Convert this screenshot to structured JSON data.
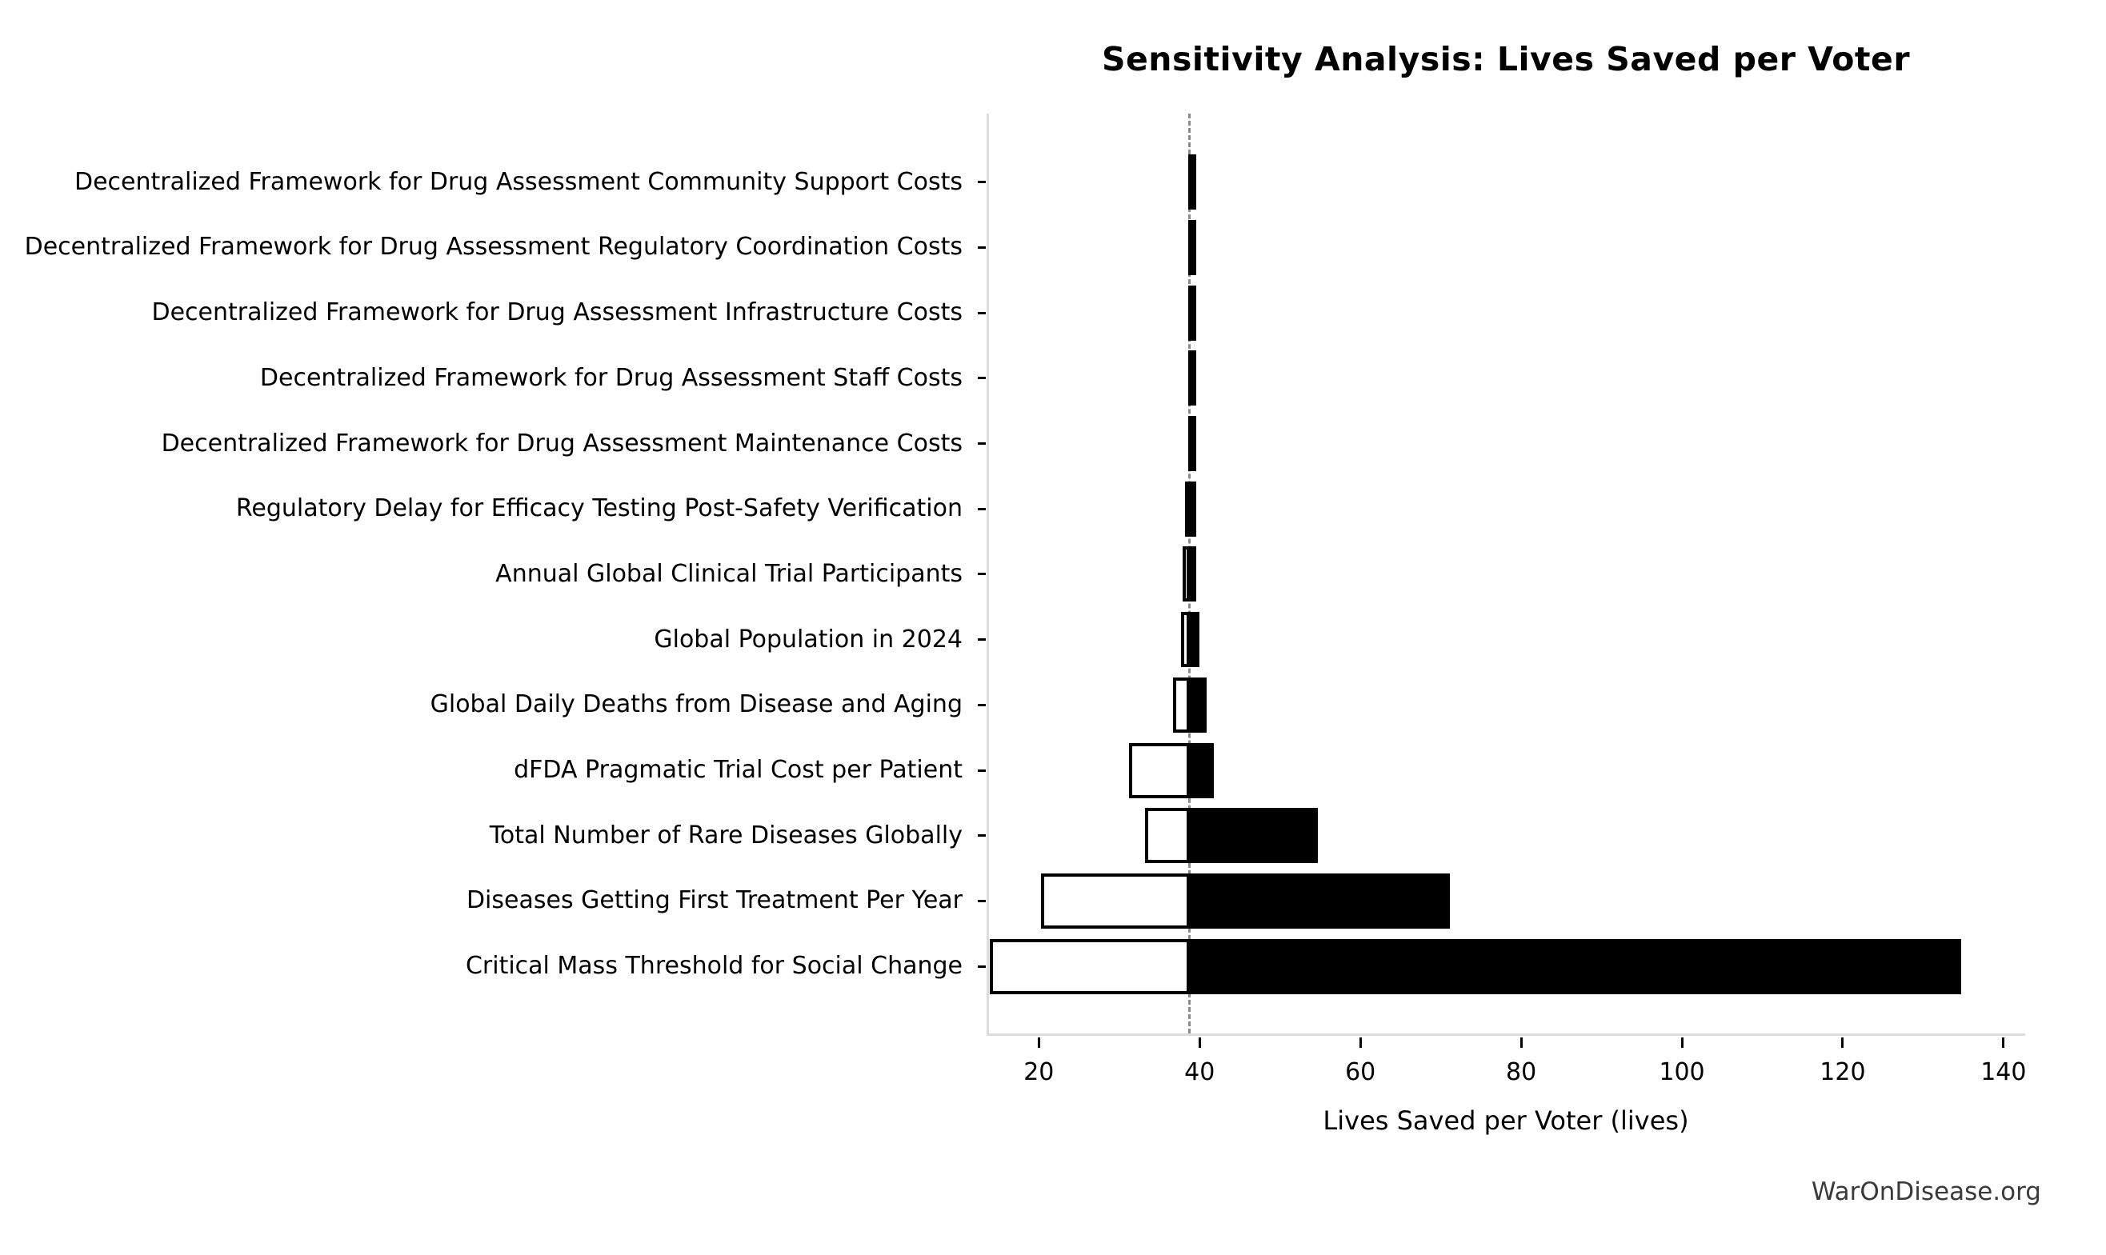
{
  "header": {
    "title": "Sensitivity Analysis: Lives Saved per Voter"
  },
  "footer": {
    "watermark": "WarOnDisease.org"
  },
  "chart_data": {
    "type": "bar",
    "variant": "tornado-sensitivity",
    "title": "Sensitivity Analysis: Lives Saved per Voter",
    "xlabel": "Lives Saved per Voter (lives)",
    "ylabel": "",
    "legend": "none",
    "grid": false,
    "baseline": 38.5,
    "xlim": [
      13.5,
      142.7
    ],
    "x_ticks": [
      20,
      40,
      60,
      80,
      100,
      120,
      140
    ],
    "categories": [
      "Decentralized Framework for Drug Assessment Community Support Costs",
      "Decentralized Framework for Drug Assessment Regulatory Coordination Costs",
      "Decentralized Framework for Drug Assessment Infrastructure Costs",
      "Decentralized Framework for Drug Assessment Staff Costs",
      "Decentralized Framework for Drug Assessment Maintenance Costs",
      "Regulatory Delay for Efficacy Testing Post-Safety Verification",
      "Annual Global Clinical Trial Participants",
      "Global Population in 2024",
      "Global Daily Deaths from Disease and Aging",
      "dFDA Pragmatic Trial Cost per Patient",
      "Total Number of Rare Diseases Globally",
      "Diseases Getting First Treatment Per Year",
      "Critical Mass Threshold for Social Change"
    ],
    "bars": [
      {
        "label": "Decentralized Framework for Drug Assessment Community Support Costs",
        "low": 38.3,
        "high": 38.8
      },
      {
        "label": "Decentralized Framework for Drug Assessment Regulatory Coordination Costs",
        "low": 38.3,
        "high": 38.8
      },
      {
        "label": "Decentralized Framework for Drug Assessment Infrastructure Costs",
        "low": 38.3,
        "high": 38.8
      },
      {
        "label": "Decentralized Framework for Drug Assessment Staff Costs",
        "low": 38.3,
        "high": 38.8
      },
      {
        "label": "Decentralized Framework for Drug Assessment Maintenance Costs",
        "low": 38.3,
        "high": 38.8
      },
      {
        "label": "Regulatory Delay for Efficacy Testing Post-Safety Verification",
        "low": 37.9,
        "high": 39.1
      },
      {
        "label": "Annual Global Clinical Trial Participants",
        "low": 37.6,
        "high": 39.3
      },
      {
        "label": "Global Population in 2024",
        "low": 37.4,
        "high": 39.7
      },
      {
        "label": "Global Daily Deaths from Disease and Aging",
        "low": 36.4,
        "high": 40.6
      },
      {
        "label": "dFDA Pragmatic Trial Cost per Patient",
        "low": 31.0,
        "high": 41.5
      },
      {
        "label": "Total Number of Rare Diseases Globally",
        "low": 33.0,
        "high": 54.5
      },
      {
        "label": "Diseases Getting First Treatment Per Year",
        "low": 20.0,
        "high": 71.0
      },
      {
        "label": "Critical Mass Threshold for Social Change",
        "low": 13.6,
        "high": 134.7
      }
    ],
    "colors": {
      "bar_high_fill": "#000000",
      "bar_low_fill": "#ffffff",
      "bar_border": "#000000",
      "baseline_line": "#8a8a8a",
      "spine": "#dcdcdc",
      "tick": "#000000",
      "watermark_text": "#3a3a3a"
    }
  }
}
